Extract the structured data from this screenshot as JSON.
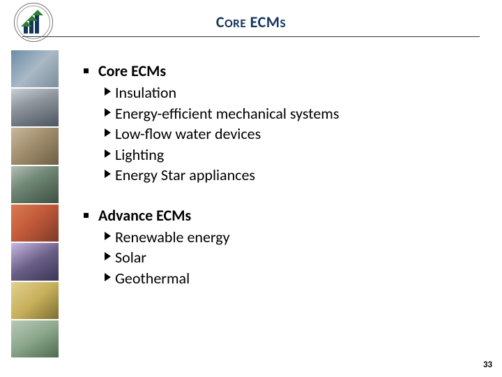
{
  "title_html": "C<span style='font-size:0.78em'>ORE</span> ECM<span style='font-size:0.78em'>S</span>",
  "page_number": "33",
  "colors": {
    "title": "#14365d",
    "text": "#000000",
    "background": "#ffffff"
  },
  "sections": [
    {
      "heading": "Core ECMs",
      "items": [
        "Insulation",
        "Energy-efficient mechanical systems",
        "Low-flow water devices",
        "Lighting",
        "Energy Star appliances"
      ]
    },
    {
      "heading": "Advance ECMs",
      "items": [
        "Renewable energy",
        "Solar",
        "Geothermal"
      ]
    }
  ],
  "strip_images": [
    {
      "gradient": "linear-gradient(135deg,#6d8ba8 0%,#a9b9c6 50%,#7c8d9b 100%)"
    },
    {
      "gradient": "linear-gradient(160deg,#c9cfd6 0%,#8e949b 40%,#4b5660 100%)"
    },
    {
      "gradient": "linear-gradient(140deg,#c8b89d 0%,#a08e6e 45%,#6e5f44 100%)"
    },
    {
      "gradient": "linear-gradient(150deg,#b6bdb6 0%,#708876 40%,#3e4f42 100%)"
    },
    {
      "gradient": "linear-gradient(135deg,#d87a52 0%,#c35a3a 45%,#7e3a28 100%)"
    },
    {
      "gradient": "linear-gradient(150deg,#c8b8e0 0%,#6a5f87 50%,#3a3654 100%)"
    },
    {
      "gradient": "linear-gradient(140deg,#e2d190 0%,#c6b05a 50%,#7c6f33 100%)"
    },
    {
      "gradient": "linear-gradient(150deg,#b8c9b8 0%,#8aa68a 50%,#4f6a4f 100%)"
    }
  ]
}
